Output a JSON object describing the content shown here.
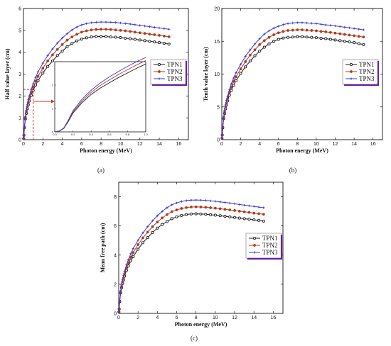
{
  "colors": {
    "TPN1": "#1a1a1a",
    "TPN2": "#b23a1e",
    "TPN3": "#3a3ae0",
    "legend_accent": "#6a1fa0",
    "inset_marker": "#c0392b"
  },
  "chart_data": [
    {
      "type": "line",
      "panel_label": "(a)",
      "xlabel": "Photon energy (MeV)",
      "ylabel": "Half value layer (cm)",
      "xlim": [
        0,
        17
      ],
      "ylim": [
        0,
        6
      ],
      "xticks": [
        0,
        2,
        4,
        6,
        8,
        10,
        12,
        14,
        16
      ],
      "yticks": [
        0,
        1,
        2,
        3,
        4,
        5,
        6
      ],
      "legend_position": "right",
      "x": [
        0.02,
        0.05,
        0.1,
        0.2,
        0.3,
        0.4,
        0.5,
        0.6,
        0.8,
        1.0,
        1.25,
        1.5,
        2.0,
        2.5,
        3.0,
        3.5,
        4.0,
        4.5,
        5.0,
        5.5,
        6.0,
        6.5,
        7.0,
        7.5,
        8.0,
        8.5,
        9.0,
        9.5,
        10.0,
        10.5,
        11.0,
        11.5,
        12.0,
        12.5,
        13.0,
        13.5,
        14.0,
        14.5,
        15.0
      ],
      "series": [
        {
          "name": "TPN1",
          "values": [
            0.05,
            0.2,
            0.55,
            0.95,
            1.2,
            1.42,
            1.6,
            1.77,
            2.03,
            2.25,
            2.5,
            2.7,
            3.05,
            3.35,
            3.6,
            3.85,
            4.05,
            4.25,
            4.4,
            4.52,
            4.6,
            4.66,
            4.7,
            4.72,
            4.72,
            4.72,
            4.7,
            4.69,
            4.67,
            4.64,
            4.62,
            4.59,
            4.56,
            4.53,
            4.5,
            4.47,
            4.44,
            4.41,
            4.37
          ]
        },
        {
          "name": "TPN2",
          "values": [
            0.05,
            0.21,
            0.57,
            1.0,
            1.27,
            1.5,
            1.7,
            1.87,
            2.16,
            2.4,
            2.67,
            2.9,
            3.27,
            3.6,
            3.88,
            4.13,
            4.35,
            4.55,
            4.7,
            4.82,
            4.92,
            4.98,
            5.02,
            5.04,
            5.05,
            5.05,
            5.04,
            5.02,
            5.0,
            4.98,
            4.95,
            4.92,
            4.89,
            4.86,
            4.83,
            4.8,
            4.77,
            4.74,
            4.71
          ]
        },
        {
          "name": "TPN3",
          "values": [
            0.06,
            0.23,
            0.6,
            1.06,
            1.35,
            1.6,
            1.82,
            2.0,
            2.3,
            2.56,
            2.85,
            3.1,
            3.5,
            3.85,
            4.15,
            4.42,
            4.65,
            4.85,
            5.02,
            5.15,
            5.25,
            5.31,
            5.35,
            5.37,
            5.38,
            5.38,
            5.37,
            5.36,
            5.34,
            5.31,
            5.29,
            5.26,
            5.23,
            5.2,
            5.17,
            5.14,
            5.11,
            5.08,
            5.05
          ]
        }
      ],
      "inset": {
        "xlim": [
          0,
          1
        ],
        "ylim": [
          0,
          3
        ],
        "xticks": [
          "0.0",
          "0.2",
          "0.4",
          "0.6",
          "0.8",
          "1.0"
        ],
        "yticks": [
          "0",
          "1",
          "2"
        ],
        "x": [
          0,
          0.05,
          0.1,
          0.15,
          0.2,
          0.3,
          0.4,
          0.5,
          0.6,
          0.7,
          0.8,
          0.9,
          1.0
        ],
        "series": [
          {
            "name": "TPN1",
            "values": [
              0,
              0.03,
              0.15,
              0.45,
              0.8,
              1.25,
              1.6,
              1.87,
              2.1,
              2.32,
              2.52,
              2.72,
              2.9
            ]
          },
          {
            "name": "TPN2",
            "values": [
              0,
              0.03,
              0.16,
              0.48,
              0.85,
              1.32,
              1.69,
              1.98,
              2.22,
              2.45,
              2.66,
              2.86,
              3.05
            ]
          },
          {
            "name": "TPN3",
            "values": [
              0,
              0.04,
              0.17,
              0.51,
              0.9,
              1.4,
              1.78,
              2.09,
              2.35,
              2.58,
              2.8,
              3.0,
              3.18
            ]
          }
        ]
      }
    },
    {
      "type": "line",
      "panel_label": "(b)",
      "xlabel": "Photon energy (MeV)",
      "ylabel": "Tenth value layer (cm)",
      "xlim": [
        0,
        17
      ],
      "ylim": [
        0,
        20
      ],
      "xticks": [
        0,
        2,
        4,
        6,
        8,
        10,
        12,
        14,
        16
      ],
      "yticks": [
        0,
        5,
        10,
        15,
        20
      ],
      "legend_position": "right",
      "x": [
        0.02,
        0.05,
        0.1,
        0.2,
        0.3,
        0.4,
        0.5,
        0.6,
        0.8,
        1.0,
        1.25,
        1.5,
        2.0,
        2.5,
        3.0,
        3.5,
        4.0,
        4.5,
        5.0,
        5.5,
        6.0,
        6.5,
        7.0,
        7.5,
        8.0,
        8.5,
        9.0,
        9.5,
        10.0,
        10.5,
        11.0,
        11.5,
        12.0,
        12.5,
        13.0,
        13.5,
        14.0,
        14.5,
        15.0
      ],
      "series": [
        {
          "name": "TPN1",
          "values": [
            0.2,
            0.7,
            1.8,
            3.2,
            4.0,
            4.7,
            5.3,
            5.9,
            6.8,
            7.5,
            8.3,
            9.0,
            10.1,
            11.1,
            12.0,
            12.8,
            13.5,
            14.1,
            14.6,
            15.0,
            15.3,
            15.5,
            15.6,
            15.65,
            15.7,
            15.7,
            15.65,
            15.6,
            15.55,
            15.45,
            15.4,
            15.3,
            15.2,
            15.1,
            15.0,
            14.9,
            14.8,
            14.65,
            14.5
          ]
        },
        {
          "name": "TPN2",
          "values": [
            0.2,
            0.72,
            1.9,
            3.3,
            4.2,
            5.0,
            5.6,
            6.2,
            7.2,
            8.0,
            8.9,
            9.6,
            10.8,
            11.9,
            12.9,
            13.7,
            14.5,
            15.1,
            15.6,
            16.0,
            16.3,
            16.5,
            16.65,
            16.7,
            16.75,
            16.75,
            16.7,
            16.65,
            16.6,
            16.5,
            16.45,
            16.35,
            16.25,
            16.15,
            16.05,
            15.95,
            15.85,
            15.75,
            15.65
          ]
        },
        {
          "name": "TPN3",
          "values": [
            0.22,
            0.78,
            2.0,
            3.5,
            4.5,
            5.3,
            6.0,
            6.6,
            7.6,
            8.5,
            9.4,
            10.2,
            11.5,
            12.7,
            13.7,
            14.6,
            15.4,
            16.1,
            16.6,
            17.0,
            17.3,
            17.55,
            17.7,
            17.8,
            17.85,
            17.85,
            17.8,
            17.75,
            17.7,
            17.6,
            17.5,
            17.45,
            17.35,
            17.25,
            17.15,
            17.05,
            16.95,
            16.85,
            16.75
          ]
        }
      ]
    },
    {
      "type": "line",
      "panel_label": "(c)",
      "xlabel": "Photon energy (MeV)",
      "ylabel": "Mean free path (cm)",
      "xlim": [
        0,
        17
      ],
      "ylim": [
        0,
        9
      ],
      "xticks": [
        0,
        2,
        4,
        6,
        8,
        10,
        12,
        14,
        16
      ],
      "yticks": [
        0,
        2,
        4,
        6,
        8
      ],
      "legend_position": "right",
      "x": [
        0.02,
        0.05,
        0.1,
        0.2,
        0.3,
        0.4,
        0.5,
        0.6,
        0.8,
        1.0,
        1.25,
        1.5,
        2.0,
        2.5,
        3.0,
        3.5,
        4.0,
        4.5,
        5.0,
        5.5,
        6.0,
        6.5,
        7.0,
        7.5,
        8.0,
        8.5,
        9.0,
        9.5,
        10.0,
        10.5,
        11.0,
        11.5,
        12.0,
        12.5,
        13.0,
        13.5,
        14.0,
        14.5,
        15.0
      ],
      "series": [
        {
          "name": "TPN1",
          "values": [
            0.1,
            0.3,
            0.8,
            1.4,
            1.75,
            2.05,
            2.3,
            2.55,
            2.95,
            3.25,
            3.6,
            3.9,
            4.4,
            4.85,
            5.2,
            5.55,
            5.85,
            6.1,
            6.3,
            6.5,
            6.62,
            6.72,
            6.78,
            6.82,
            6.83,
            6.82,
            6.8,
            6.77,
            6.74,
            6.7,
            6.66,
            6.62,
            6.58,
            6.54,
            6.5,
            6.46,
            6.42,
            6.38,
            6.33
          ]
        },
        {
          "name": "TPN2",
          "values": [
            0.1,
            0.32,
            0.85,
            1.45,
            1.85,
            2.17,
            2.45,
            2.7,
            3.12,
            3.46,
            3.85,
            4.18,
            4.72,
            5.18,
            5.58,
            5.95,
            6.27,
            6.55,
            6.78,
            6.98,
            7.1,
            7.2,
            7.26,
            7.3,
            7.31,
            7.3,
            7.28,
            7.25,
            7.22,
            7.18,
            7.14,
            7.1,
            7.06,
            7.01,
            6.97,
            6.93,
            6.88,
            6.84,
            6.8
          ]
        },
        {
          "name": "TPN3",
          "values": [
            0.11,
            0.34,
            0.9,
            1.55,
            1.95,
            2.3,
            2.6,
            2.87,
            3.32,
            3.68,
            4.1,
            4.45,
            5.02,
            5.52,
            5.95,
            6.35,
            6.7,
            7.0,
            7.25,
            7.45,
            7.58,
            7.68,
            7.74,
            7.77,
            7.78,
            7.77,
            7.75,
            7.72,
            7.69,
            7.65,
            7.61,
            7.57,
            7.52,
            7.47,
            7.43,
            7.38,
            7.34,
            7.29,
            7.25
          ]
        }
      ]
    }
  ]
}
